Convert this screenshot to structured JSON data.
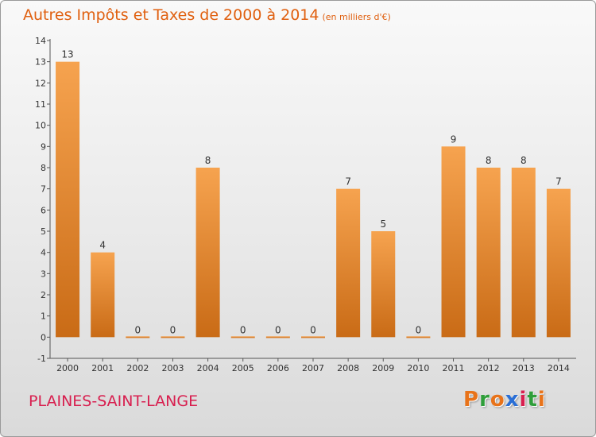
{
  "title": "Autres Impôts et Taxes de 2000 à 2014",
  "unit": "(en milliers d'€)",
  "town": "PLAINES-SAINT-LANGE",
  "logo": [
    "P",
    "r",
    "o",
    "x",
    "i",
    "t",
    "i"
  ],
  "colors": {
    "title": "#e06010",
    "town": "#d81f4f",
    "bar_light": "#f6a34f",
    "bar_dark": "#c96b16",
    "logo": [
      "#e8731a",
      "#2f9e3a",
      "#e8731a",
      "#2a6fd6",
      "#d81f4f",
      "#2f9e3a",
      "#e8731a"
    ]
  },
  "chart_data": {
    "type": "bar",
    "title": "Autres Impôts et Taxes de 2000 à 2014",
    "categories": [
      "2000",
      "2001",
      "2002",
      "2003",
      "2004",
      "2005",
      "2006",
      "2007",
      "2008",
      "2009",
      "2010",
      "2011",
      "2012",
      "2013",
      "2014"
    ],
    "values": [
      13,
      4,
      0,
      0,
      8,
      0,
      0,
      0,
      7,
      5,
      0,
      9,
      8,
      8,
      7
    ],
    "ylim": [
      -1,
      14
    ],
    "yticks": [
      "-1",
      "0",
      "1",
      "2",
      "3",
      "4",
      "5",
      "6",
      "7",
      "8",
      "9",
      "10",
      "11",
      "12",
      "13",
      "14"
    ],
    "grid": false,
    "legend": "none"
  }
}
